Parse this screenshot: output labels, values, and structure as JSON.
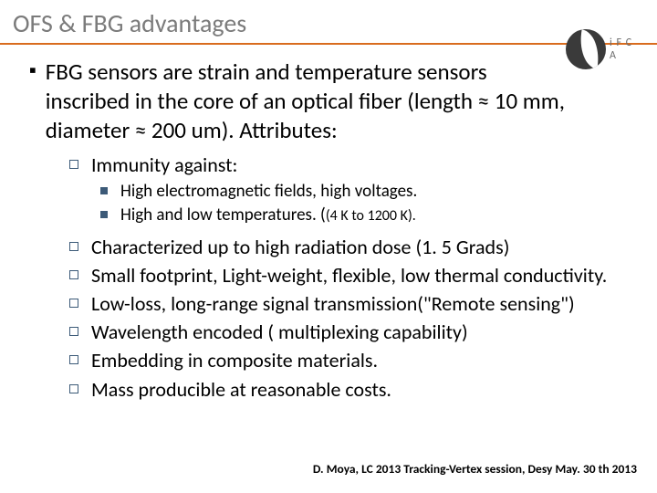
{
  "colors": {
    "title": "#7b7b7b",
    "underline": "#d96c1e",
    "body": "#000000",
    "bullet_square": "#3c5a78",
    "bullet_solid": "#3c5a78",
    "logo_bg": "#3a3a3a",
    "logo_text": "#6a6a6a",
    "footer": "#000000"
  },
  "title": "OFS & FBG advantages",
  "logo_letters": "i F C A",
  "main_bullet": "FBG sensors are strain and temperature sensors inscribed in  the core of an optical fiber (length ≈ 10 mm, diameter ≈ 200 um). Attributes:",
  "sub_immunity": "Immunity against:",
  "subsub_1": "High electromagnetic fields, high voltages.",
  "subsub_2a": "High and low temperatures. (",
  "subsub_2b": "(4 K to 1200 K).",
  "sub_items": [
    "Characterized up to high radiation dose (1. 5 Grads)",
    "Small footprint, Light-weight, flexible, low thermal conductivity.",
    "Low-loss, long-range signal transmission(\"Remote sensing\")",
    "Wavelength encoded ( multiplexing capability)",
    "Embedding in  composite materials.",
    "Mass producible at reasonable costs."
  ],
  "footer": "D. Moya, LC 2013 Tracking-Vertex  session, Desy  May. 30 th  2013"
}
